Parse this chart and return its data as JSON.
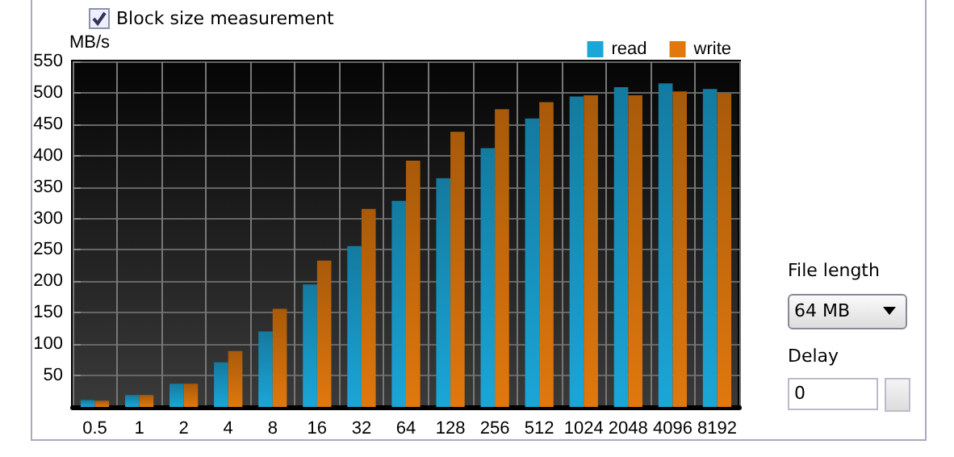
{
  "chart_data": {
    "type": "bar",
    "ylabel": "MB/s",
    "categories": [
      "0.5",
      "1",
      "2",
      "4",
      "8",
      "16",
      "32",
      "64",
      "128",
      "256",
      "512",
      "1024",
      "2048",
      "4096",
      "8192"
    ],
    "series": [
      {
        "name": "read",
        "color": "#1ba6d8",
        "values": [
          11,
          19,
          37,
          71,
          120,
          195,
          256,
          328,
          364,
          412,
          459,
          494,
          509,
          515,
          506
        ]
      },
      {
        "name": "write",
        "color": "#e0780e",
        "values": [
          10,
          19,
          37,
          89,
          156,
          233,
          315,
          392,
          438,
          474,
          485,
          496,
          496,
          502,
          499
        ]
      }
    ],
    "ylim": [
      0,
      550
    ],
    "yticks": [
      50,
      100,
      150,
      200,
      250,
      300,
      350,
      400,
      450,
      500,
      550
    ],
    "grid": true,
    "legend": "top right",
    "annotations": [
      "Block size measurement",
      "File length",
      "64 MB",
      "Delay",
      "0"
    ]
  }
}
